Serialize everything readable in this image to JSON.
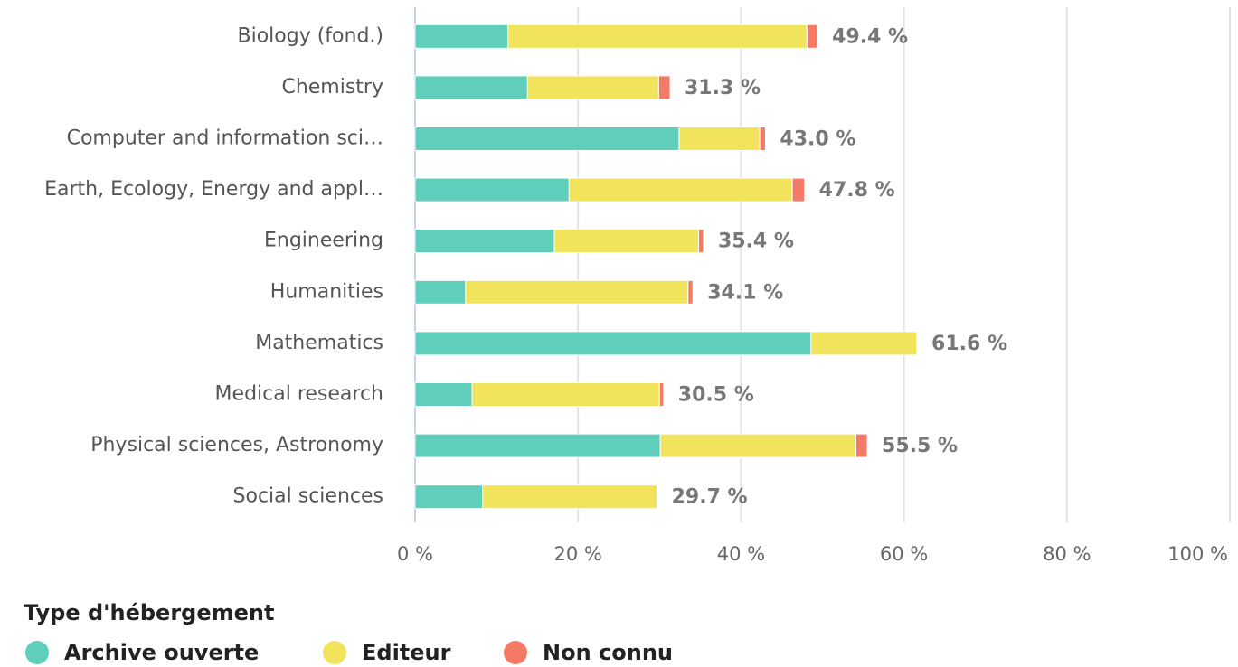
{
  "chart_data": {
    "type": "stacked_barh",
    "categories": [
      "Biology (fond.)",
      "Chemistry",
      "Computer and information sci…",
      "Earth, Ecology, Energy and appl…",
      "Engineering",
      "Humanities",
      "Mathematics",
      "Medical research",
      "Physical sciences, Astronomy",
      "Social sciences"
    ],
    "series": [
      {
        "name": "Archive ouverte",
        "color": "#5fcfbb",
        "values": [
          11.4,
          13.8,
          32.4,
          18.9,
          17.1,
          6.2,
          48.6,
          7.0,
          30.1,
          8.3
        ]
      },
      {
        "name": "Editeur",
        "color": "#f2e35c",
        "values": [
          36.7,
          16.1,
          9.9,
          27.4,
          17.7,
          27.3,
          13.0,
          23.0,
          24.0,
          21.4
        ]
      },
      {
        "name": "Non connu",
        "color": "#f47a66",
        "values": [
          1.3,
          1.4,
          0.7,
          1.5,
          0.6,
          0.6,
          0,
          0.5,
          1.4,
          0
        ]
      }
    ],
    "totals": [
      49.4,
      31.3,
      43.0,
      47.8,
      35.4,
      34.1,
      61.6,
      30.5,
      55.5,
      29.7
    ],
    "total_labels": [
      "49.4 %",
      "31.3 %",
      "43.0 %",
      "47.8 %",
      "35.4 %",
      "34.1 %",
      "61.6 %",
      "30.5 %",
      "55.5 %",
      "29.7 %"
    ],
    "xlim": [
      0,
      100
    ],
    "xticks": [
      {
        "value": 0,
        "label": "0 %"
      },
      {
        "value": 20,
        "label": "20 %"
      },
      {
        "value": 40,
        "label": "40 %"
      },
      {
        "value": 60,
        "label": "60 %"
      },
      {
        "value": 80,
        "label": "80 %"
      },
      {
        "value": 100,
        "label": "100 %"
      }
    ],
    "grid": true,
    "legend_title": "Type d'hébergement",
    "legend": "bottom-left"
  }
}
